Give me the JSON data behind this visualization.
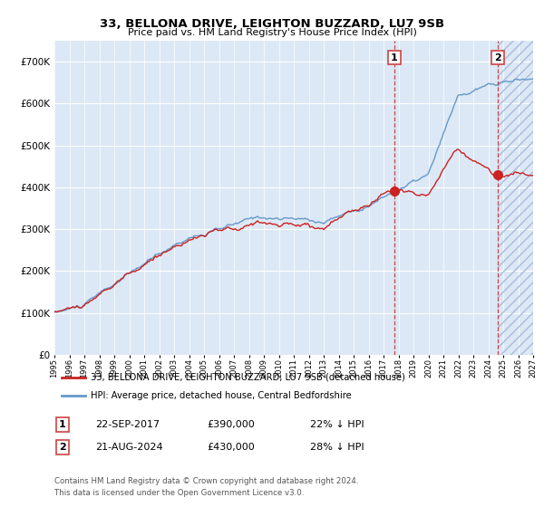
{
  "title": "33, BELLONA DRIVE, LEIGHTON BUZZARD, LU7 9SB",
  "subtitle": "Price paid vs. HM Land Registry's House Price Index (HPI)",
  "legend_line1": "33, BELLONA DRIVE, LEIGHTON BUZZARD, LU7 9SB (detached house)",
  "legend_line2": "HPI: Average price, detached house, Central Bedfordshire",
  "annotation1_label": "1",
  "annotation1_date": "22-SEP-2017",
  "annotation1_price": "£390,000",
  "annotation1_hpi": "22% ↓ HPI",
  "annotation2_label": "2",
  "annotation2_date": "21-AUG-2024",
  "annotation2_price": "£430,000",
  "annotation2_hpi": "28% ↓ HPI",
  "footnote1": "Contains HM Land Registry data © Crown copyright and database right 2024.",
  "footnote2": "This data is licensed under the Open Government Licence v3.0.",
  "plot_bg_color": "#dce8f5",
  "hpi_line_color": "#6699cc",
  "price_line_color": "#cc2222",
  "vline_color": "#cc4444",
  "grid_color": "#ffffff",
  "hatch_color": "#aabbdd",
  "ylim": [
    0,
    750000
  ],
  "yticks": [
    0,
    100000,
    200000,
    300000,
    400000,
    500000,
    600000,
    700000
  ],
  "year_start": 1995,
  "year_end": 2027,
  "sale1_year": 2017.72,
  "sale2_year": 2024.63,
  "price_sale1": 390000,
  "price_sale2": 430000
}
